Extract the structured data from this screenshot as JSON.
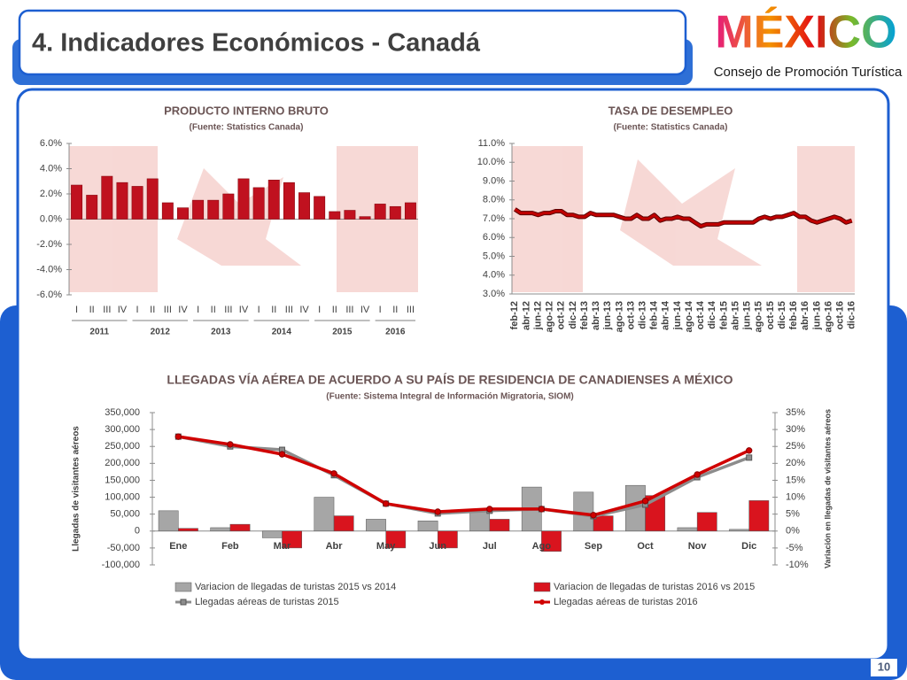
{
  "header": {
    "title": "4. Indicadores Económicos - Canadá",
    "logo": "MÉXICO",
    "subtitle": "Consejo de Promoción Turística",
    "page_number": "10"
  },
  "chart_data": [
    {
      "type": "bar",
      "title": "PRODUCTO INTERNO BRUTO",
      "subtitle": "(Fuente: Statistics Canada)",
      "categories": [
        "I",
        "II",
        "III",
        "IV",
        "I",
        "II",
        "III",
        "IV",
        "I",
        "II",
        "III",
        "IV",
        "I",
        "II",
        "III",
        "IV",
        "I",
        "II",
        "III",
        "IV",
        "I",
        "II",
        "III"
      ],
      "groups": [
        "2011",
        "2012",
        "2013",
        "2014",
        "2015",
        "2016"
      ],
      "values": [
        2.7,
        1.9,
        3.4,
        2.9,
        2.6,
        3.2,
        1.3,
        0.9,
        1.5,
        1.5,
        2.0,
        3.2,
        2.5,
        3.1,
        2.9,
        2.1,
        1.8,
        0.6,
        0.7,
        0.2,
        1.2,
        1.0,
        1.3
      ],
      "color": "#c0111f",
      "ylim": [
        -6,
        6
      ],
      "yticks": [
        {
          "value": -6,
          "label": "-6.0%"
        },
        {
          "value": -4,
          "label": "-4.0%"
        },
        {
          "value": -2,
          "label": "-2.0%"
        },
        {
          "value": 0,
          "label": "0.0%"
        },
        {
          "value": 2,
          "label": "2.0%"
        },
        {
          "value": 4,
          "label": "4.0%"
        },
        {
          "value": 6,
          "label": "6.0%"
        }
      ]
    },
    {
      "type": "line",
      "title": "TASA DE DESEMPLEO",
      "subtitle": "(Fuente: Statistics Canada)",
      "categories": [
        "feb-12",
        null,
        "abr-12",
        null,
        "jun-12",
        null,
        "ago-12",
        null,
        "oct-12",
        null,
        "dic-12",
        null,
        "feb-13",
        null,
        "abr-13",
        null,
        "jun-13",
        null,
        "ago-13",
        null,
        "oct-13",
        null,
        "dic-13",
        null,
        "feb-14",
        null,
        "abr-14",
        null,
        "jun-14",
        null,
        "ago-14",
        null,
        "oct-14",
        null,
        "dic-14",
        null,
        "feb-15",
        null,
        "abr-15",
        null,
        "jun-15",
        null,
        "ago-15",
        null,
        "oct-15",
        null,
        "dic-15",
        null,
        "feb-16",
        null,
        "abr-16",
        null,
        "jun-16",
        null,
        "ago-16",
        null,
        "oct-16",
        null,
        "dic-16"
      ],
      "values": [
        7.5,
        7.3,
        7.3,
        7.3,
        7.2,
        7.3,
        7.3,
        7.4,
        7.4,
        7.2,
        7.2,
        7.1,
        7.1,
        7.3,
        7.2,
        7.2,
        7.2,
        7.2,
        7.1,
        7.0,
        7.0,
        7.2,
        7.0,
        7.0,
        7.2,
        6.9,
        7.0,
        7.0,
        7.1,
        7.0,
        7.0,
        6.8,
        6.6,
        6.7,
        6.7,
        6.7,
        6.8,
        6.8,
        6.8,
        6.8,
        6.8,
        6.8,
        7.0,
        7.1,
        7.0,
        7.1,
        7.1,
        7.2,
        7.3,
        7.1,
        7.1,
        6.9,
        6.8,
        6.9,
        7.0,
        7.1,
        7.0,
        6.8,
        6.9
      ],
      "color": "#c00000",
      "ylim": [
        3,
        11
      ],
      "yticks": [
        {
          "value": 3,
          "label": "3.0%"
        },
        {
          "value": 4,
          "label": "4.0%"
        },
        {
          "value": 5,
          "label": "5.0%"
        },
        {
          "value": 6,
          "label": "6.0%"
        },
        {
          "value": 7,
          "label": "7.0%"
        },
        {
          "value": 8,
          "label": "8.0%"
        },
        {
          "value": 9,
          "label": "9.0%"
        },
        {
          "value": 10,
          "label": "10.0%"
        },
        {
          "value": 11,
          "label": "11.0%"
        }
      ]
    },
    {
      "type": "combo",
      "title": "LLEGADAS VÍA AÉREA DE ACUERDO A SU PAÍS DE RESIDENCIA DE CANADIENSES A MÉXICO",
      "subtitle": "(Fuente: Sistema Integral de Información Migratoria,  SIOM)",
      "y_label": "Llegadas de visitantes aéreos",
      "y2_label": "Variación en llegadas de visitantes aéreos",
      "categories": [
        "Ene",
        "Feb",
        "Mar",
        "Abr",
        "May",
        "Jun",
        "Jul",
        "Ago",
        "Sep",
        "Oct",
        "Nov",
        "Dic"
      ],
      "series": [
        {
          "name": "Variacion de llegadas de turistas  2015 vs 2014",
          "kind": "bar",
          "axis": "y2",
          "color": "#a6a6a6",
          "values": [
            6,
            1,
            -2,
            10,
            3.5,
            3,
            6,
            13,
            11.5,
            13.5,
            1,
            0.5
          ]
        },
        {
          "name": "Variacion de llegadas de turistas  2016 vs 2015",
          "kind": "bar",
          "axis": "y2",
          "color": "#d9141e",
          "values": [
            0.8,
            2,
            -5,
            4.5,
            -5,
            -5,
            3.5,
            -6,
            4.5,
            10.5,
            5.5,
            9
          ]
        },
        {
          "name": "Llegadas aéreas de turistas 2015",
          "kind": "line",
          "marker": "square",
          "color": "#8c8c8c",
          "values": [
            279000,
            250000,
            240000,
            165000,
            81000,
            52000,
            60000,
            65000,
            44000,
            78000,
            159000,
            217000
          ]
        },
        {
          "name": "Llegadas aéreas de turistas 2016",
          "kind": "line",
          "marker": "circle",
          "color": "#d00000",
          "values": [
            279000,
            256000,
            227000,
            170000,
            81000,
            57000,
            65000,
            65000,
            47000,
            89000,
            167000,
            238000
          ]
        }
      ],
      "ylim": [
        -100000,
        350000
      ],
      "yticks": [
        {
          "value": -100000,
          "label": "-100,000"
        },
        {
          "value": -50000,
          "label": "-50,000"
        },
        0,
        {
          "value": 50000,
          "label": "50,000"
        },
        {
          "value": 100000,
          "label": "100,000"
        },
        {
          "value": 150000,
          "label": "150,000"
        },
        {
          "value": 200000,
          "label": "200,000"
        },
        {
          "value": 250000,
          "label": "250,000"
        },
        {
          "value": 300000,
          "label": "300,000"
        },
        {
          "value": 350000,
          "label": "350,000"
        }
      ],
      "y2lim": [
        -10,
        35
      ],
      "y2ticks": [
        {
          "value": -10,
          "label": "-10%"
        },
        {
          "value": -5,
          "label": "-5%"
        },
        {
          "value": 0,
          "label": "0%"
        },
        {
          "value": 5,
          "label": "5%"
        },
        {
          "value": 10,
          "label": "10%"
        },
        {
          "value": 15,
          "label": "15%"
        },
        {
          "value": 20,
          "label": "20%"
        },
        {
          "value": 25,
          "label": "25%"
        },
        {
          "value": 30,
          "label": "30%"
        },
        {
          "value": 35,
          "label": "35%"
        }
      ],
      "legend": "bottom"
    }
  ]
}
